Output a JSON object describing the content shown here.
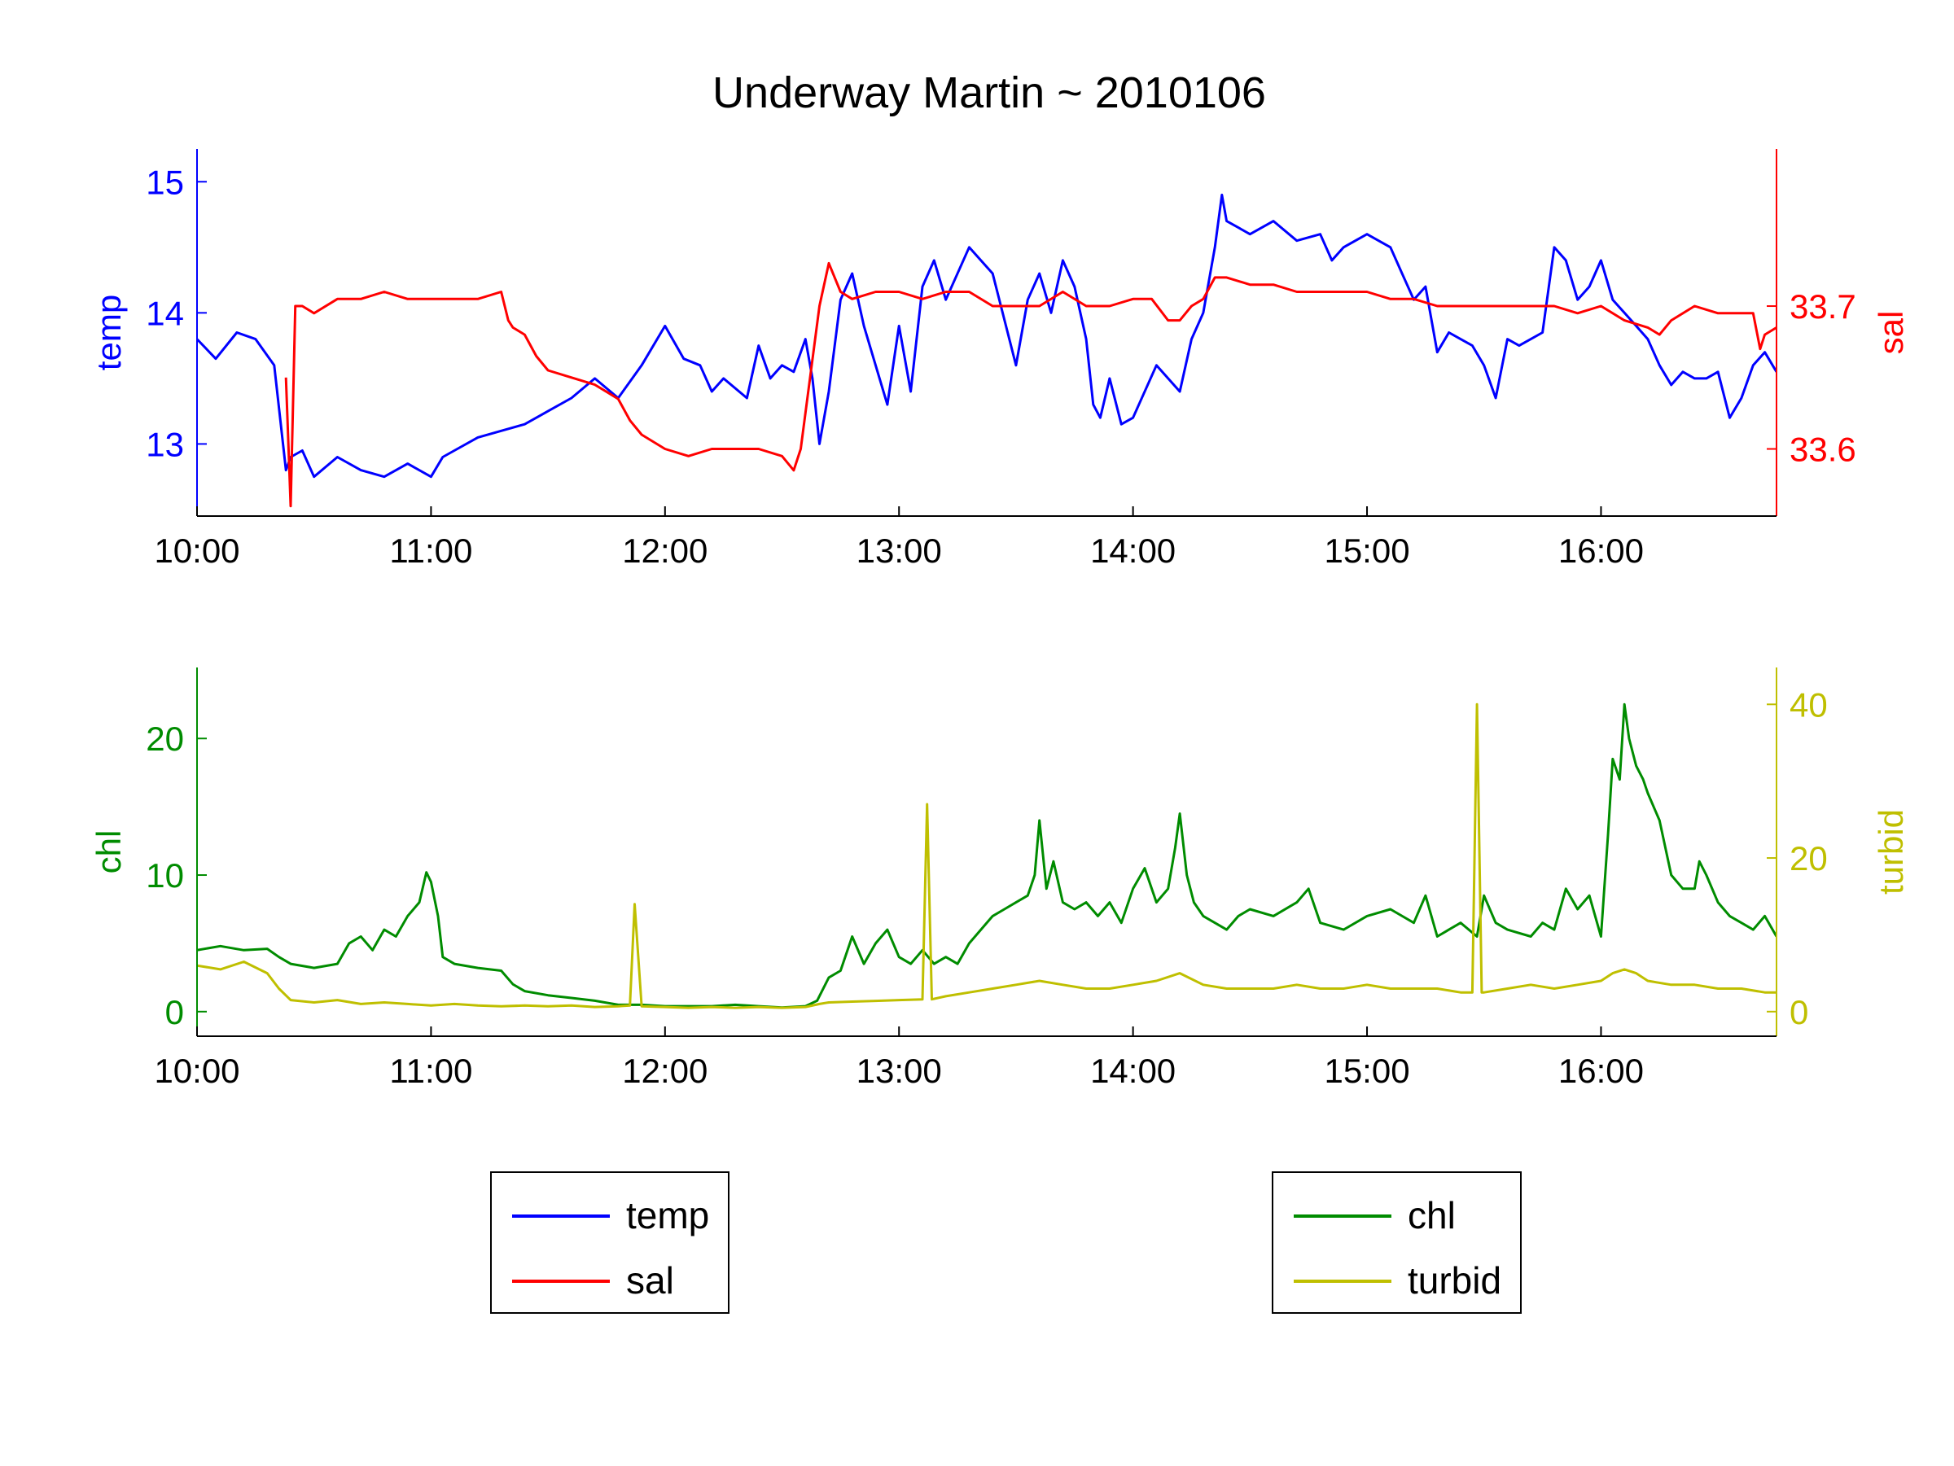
{
  "title": "Underway Martin ~ 2010106",
  "colors": {
    "temp": "#0000ff",
    "sal": "#ff0000",
    "chl": "#008c00",
    "turbid": "#bfbf00",
    "axis": "#000000"
  },
  "chart_data": [
    {
      "type": "line",
      "panel": "top",
      "x_unit": "time of day (hours)",
      "xlim": [
        10.0,
        16.75
      ],
      "x_ticks": [
        10,
        11,
        12,
        13,
        14,
        15,
        16
      ],
      "x_tick_labels": [
        "10:00",
        "11:00",
        "12:00",
        "13:00",
        "14:00",
        "15:00",
        "16:00"
      ],
      "left_axis": {
        "label": "temp",
        "ylim": [
          12.45,
          15.25
        ],
        "ticks": [
          13,
          14,
          15
        ],
        "tick_labels": [
          "13",
          "14",
          "15"
        ]
      },
      "right_axis": {
        "label": "sal",
        "ylim": [
          33.553,
          33.81
        ],
        "ticks": [
          33.6,
          33.7
        ],
        "tick_labels": [
          "33.6",
          "33.7"
        ]
      },
      "series": [
        {
          "name": "temp",
          "axis": "left",
          "color_key": "temp",
          "x": [
            10.0,
            10.08,
            10.17,
            10.25,
            10.33,
            10.38,
            10.4,
            10.45,
            10.5,
            10.6,
            10.7,
            10.8,
            10.9,
            11.0,
            11.05,
            11.1,
            11.2,
            11.3,
            11.4,
            11.5,
            11.6,
            11.7,
            11.8,
            11.9,
            12.0,
            12.08,
            12.15,
            12.2,
            12.25,
            12.35,
            12.4,
            12.45,
            12.5,
            12.55,
            12.6,
            12.63,
            12.66,
            12.7,
            12.75,
            12.8,
            12.85,
            12.9,
            12.95,
            13.0,
            13.05,
            13.1,
            13.15,
            13.2,
            13.3,
            13.4,
            13.5,
            13.55,
            13.6,
            13.65,
            13.7,
            13.75,
            13.8,
            13.83,
            13.86,
            13.9,
            13.95,
            14.0,
            14.1,
            14.2,
            14.25,
            14.3,
            14.35,
            14.38,
            14.4,
            14.45,
            14.5,
            14.6,
            14.7,
            14.8,
            14.85,
            14.9,
            15.0,
            15.1,
            15.15,
            15.2,
            15.25,
            15.3,
            15.35,
            15.4,
            15.45,
            15.5,
            15.55,
            15.6,
            15.65,
            15.7,
            15.75,
            15.8,
            15.85,
            15.9,
            15.95,
            16.0,
            16.05,
            16.1,
            16.15,
            16.2,
            16.25,
            16.3,
            16.35,
            16.4,
            16.45,
            16.5,
            16.55,
            16.6,
            16.65,
            16.7,
            16.75
          ],
          "values": [
            13.8,
            13.65,
            13.85,
            13.8,
            13.6,
            12.8,
            12.9,
            12.95,
            12.75,
            12.9,
            12.8,
            12.75,
            12.85,
            12.75,
            12.9,
            12.95,
            13.05,
            13.1,
            13.15,
            13.25,
            13.35,
            13.5,
            13.35,
            13.6,
            13.9,
            13.65,
            13.6,
            13.4,
            13.5,
            13.35,
            13.75,
            13.5,
            13.6,
            13.55,
            13.8,
            13.5,
            13.0,
            13.4,
            14.1,
            14.3,
            13.9,
            13.6,
            13.3,
            13.9,
            13.4,
            14.2,
            14.4,
            14.1,
            14.5,
            14.3,
            13.6,
            14.1,
            14.3,
            14.0,
            14.4,
            14.2,
            13.8,
            13.3,
            13.2,
            13.5,
            13.15,
            13.2,
            13.6,
            13.4,
            13.8,
            14.0,
            14.5,
            14.9,
            14.7,
            14.65,
            14.6,
            14.7,
            14.55,
            14.6,
            14.4,
            14.5,
            14.6,
            14.5,
            14.3,
            14.1,
            14.2,
            13.7,
            13.85,
            13.8,
            13.75,
            13.6,
            13.35,
            13.8,
            13.75,
            13.8,
            13.85,
            14.5,
            14.4,
            14.1,
            14.2,
            14.4,
            14.1,
            14.0,
            13.9,
            13.8,
            13.6,
            13.45,
            13.55,
            13.5,
            13.5,
            13.55,
            13.2,
            13.35,
            13.6,
            13.7,
            13.55
          ]
        },
        {
          "name": "sal",
          "axis": "right",
          "color_key": "sal",
          "x": [
            10.0,
            10.2,
            10.38,
            10.4,
            10.42,
            10.45,
            10.5,
            10.6,
            10.7,
            10.8,
            10.9,
            11.0,
            11.1,
            11.2,
            11.3,
            11.33,
            11.35,
            11.4,
            11.45,
            11.5,
            11.6,
            11.7,
            11.75,
            11.8,
            11.85,
            11.9,
            12.0,
            12.1,
            12.2,
            12.3,
            12.4,
            12.5,
            12.55,
            12.58,
            12.62,
            12.66,
            12.7,
            12.75,
            12.8,
            12.9,
            13.0,
            13.1,
            13.2,
            13.3,
            13.4,
            13.5,
            13.6,
            13.7,
            13.8,
            13.9,
            14.0,
            14.08,
            14.15,
            14.2,
            14.25,
            14.3,
            14.35,
            14.4,
            14.5,
            14.6,
            14.7,
            14.8,
            14.9,
            15.0,
            15.1,
            15.2,
            15.3,
            15.4,
            15.5,
            15.6,
            15.7,
            15.8,
            15.9,
            16.0,
            16.1,
            16.2,
            16.25,
            16.3,
            16.4,
            16.5,
            16.6,
            16.65,
            16.68,
            16.7,
            16.75
          ],
          "values": [
            null,
            null,
            33.65,
            33.56,
            33.7,
            33.7,
            33.695,
            33.705,
            33.705,
            33.71,
            33.705,
            33.705,
            33.705,
            33.705,
            33.71,
            33.69,
            33.685,
            33.68,
            33.665,
            33.655,
            33.65,
            33.645,
            33.64,
            33.635,
            33.62,
            33.61,
            33.6,
            33.595,
            33.6,
            33.6,
            33.6,
            33.595,
            33.585,
            33.6,
            33.65,
            33.7,
            33.73,
            33.71,
            33.705,
            33.71,
            33.71,
            33.705,
            33.71,
            33.71,
            33.7,
            33.7,
            33.7,
            33.71,
            33.7,
            33.7,
            33.705,
            33.705,
            33.69,
            33.69,
            33.7,
            33.705,
            33.72,
            33.72,
            33.715,
            33.715,
            33.71,
            33.71,
            33.71,
            33.71,
            33.705,
            33.705,
            33.7,
            33.7,
            33.7,
            33.7,
            33.7,
            33.7,
            33.695,
            33.7,
            33.69,
            33.685,
            33.68,
            33.69,
            33.7,
            33.695,
            33.695,
            33.695,
            33.67,
            33.68,
            33.685
          ]
        }
      ]
    },
    {
      "type": "line",
      "panel": "bottom",
      "x_unit": "time of day (hours)",
      "xlim": [
        10.0,
        16.75
      ],
      "x_ticks": [
        10,
        11,
        12,
        13,
        14,
        15,
        16
      ],
      "x_tick_labels": [
        "10:00",
        "11:00",
        "12:00",
        "13:00",
        "14:00",
        "15:00",
        "16:00"
      ],
      "left_axis": {
        "label": "chl",
        "ylim": [
          -1.8,
          25.2
        ],
        "ticks": [
          0,
          10,
          20
        ],
        "tick_labels": [
          "0",
          "10",
          "20"
        ]
      },
      "right_axis": {
        "label": "turbid",
        "ylim": [
          -3.2,
          44.8
        ],
        "ticks": [
          0,
          20,
          40
        ],
        "tick_labels": [
          "0",
          "20",
          "40"
        ]
      },
      "series": [
        {
          "name": "chl",
          "axis": "left",
          "color_key": "chl",
          "x": [
            10.0,
            10.1,
            10.2,
            10.3,
            10.35,
            10.4,
            10.5,
            10.6,
            10.65,
            10.7,
            10.75,
            10.8,
            10.85,
            10.9,
            10.95,
            10.98,
            11.0,
            11.03,
            11.05,
            11.1,
            11.2,
            11.3,
            11.35,
            11.4,
            11.5,
            11.6,
            11.7,
            11.8,
            11.9,
            12.0,
            12.1,
            12.2,
            12.3,
            12.4,
            12.5,
            12.6,
            12.65,
            12.7,
            12.75,
            12.8,
            12.85,
            12.9,
            12.95,
            13.0,
            13.05,
            13.1,
            13.15,
            13.2,
            13.25,
            13.3,
            13.35,
            13.4,
            13.45,
            13.5,
            13.55,
            13.58,
            13.6,
            13.63,
            13.66,
            13.7,
            13.75,
            13.8,
            13.85,
            13.9,
            13.95,
            14.0,
            14.05,
            14.1,
            14.15,
            14.18,
            14.2,
            14.23,
            14.26,
            14.3,
            14.35,
            14.4,
            14.45,
            14.5,
            14.6,
            14.7,
            14.75,
            14.8,
            14.9,
            15.0,
            15.1,
            15.2,
            15.25,
            15.3,
            15.35,
            15.4,
            15.47,
            15.5,
            15.55,
            15.6,
            15.7,
            15.75,
            15.8,
            15.85,
            15.9,
            15.95,
            16.0,
            16.03,
            16.05,
            16.08,
            16.1,
            16.12,
            16.15,
            16.18,
            16.2,
            16.25,
            16.3,
            16.35,
            16.4,
            16.42,
            16.45,
            16.5,
            16.55,
            16.6,
            16.65,
            16.7,
            16.75
          ],
          "values": [
            4.5,
            4.8,
            4.5,
            4.6,
            4.0,
            3.5,
            3.2,
            3.5,
            5.0,
            5.5,
            4.5,
            6.0,
            5.5,
            7.0,
            8.0,
            10.2,
            9.5,
            7.0,
            4.0,
            3.5,
            3.2,
            3.0,
            2.0,
            1.5,
            1.2,
            1.0,
            0.8,
            0.5,
            0.5,
            0.4,
            0.4,
            0.4,
            0.5,
            0.4,
            0.3,
            0.4,
            0.8,
            2.5,
            3.0,
            5.5,
            3.5,
            5.0,
            6.0,
            4.0,
            3.5,
            4.5,
            3.5,
            4.0,
            3.5,
            5.0,
            6.0,
            7.0,
            7.5,
            8.0,
            8.5,
            10.0,
            14.0,
            9.0,
            11.0,
            8.0,
            7.5,
            8.0,
            7.0,
            8.0,
            6.5,
            9.0,
            10.5,
            8.0,
            9.0,
            12.0,
            14.5,
            10.0,
            8.0,
            7.0,
            6.5,
            6.0,
            7.0,
            7.5,
            7.0,
            8.0,
            9.0,
            6.5,
            6.0,
            7.0,
            7.5,
            6.5,
            8.5,
            5.5,
            6.0,
            6.5,
            5.5,
            8.5,
            6.5,
            6.0,
            5.5,
            6.5,
            6.0,
            9.0,
            7.5,
            8.5,
            5.5,
            13.0,
            18.5,
            17.0,
            22.5,
            20.0,
            18.0,
            17.0,
            16.0,
            14.0,
            10.0,
            9.0,
            9.0,
            11.0,
            10.0,
            8.0,
            7.0,
            6.5,
            6.0,
            7.0,
            5.5
          ]
        },
        {
          "name": "turbid",
          "axis": "right",
          "color_key": "turbid",
          "x": [
            10.0,
            10.1,
            10.2,
            10.3,
            10.35,
            10.4,
            10.5,
            10.6,
            10.7,
            10.8,
            10.9,
            11.0,
            11.1,
            11.2,
            11.3,
            11.4,
            11.5,
            11.6,
            11.7,
            11.8,
            11.85,
            11.87,
            11.9,
            12.0,
            12.1,
            12.2,
            12.3,
            12.4,
            12.5,
            12.6,
            12.66,
            12.7,
            12.8,
            12.9,
            13.0,
            13.1,
            13.12,
            13.14,
            13.2,
            13.3,
            13.4,
            13.5,
            13.6,
            13.7,
            13.8,
            13.9,
            14.0,
            14.1,
            14.2,
            14.3,
            14.4,
            14.5,
            14.6,
            14.7,
            14.8,
            14.9,
            15.0,
            15.1,
            15.2,
            15.3,
            15.4,
            15.45,
            15.47,
            15.49,
            15.5,
            15.6,
            15.7,
            15.8,
            15.9,
            16.0,
            16.05,
            16.1,
            16.15,
            16.2,
            16.3,
            16.4,
            16.5,
            16.6,
            16.7,
            16.75
          ],
          "values": [
            6.0,
            5.5,
            6.5,
            5.0,
            3.0,
            1.5,
            1.2,
            1.5,
            1.0,
            1.2,
            1.0,
            0.8,
            1.0,
            0.8,
            0.7,
            0.8,
            0.7,
            0.8,
            0.6,
            0.7,
            0.8,
            14.0,
            0.7,
            0.6,
            0.5,
            0.6,
            0.5,
            0.6,
            0.5,
            0.6,
            1.0,
            1.2,
            1.3,
            1.4,
            1.5,
            1.6,
            27.0,
            1.6,
            2.0,
            2.5,
            3.0,
            3.5,
            4.0,
            3.5,
            3.0,
            3.0,
            3.5,
            4.0,
            5.0,
            3.5,
            3.0,
            3.0,
            3.0,
            3.5,
            3.0,
            3.0,
            3.5,
            3.0,
            3.0,
            3.0,
            2.5,
            2.5,
            40.0,
            2.5,
            2.5,
            3.0,
            3.5,
            3.0,
            3.5,
            4.0,
            5.0,
            5.5,
            5.0,
            4.0,
            3.5,
            3.5,
            3.0,
            3.0,
            2.5,
            2.5
          ]
        }
      ]
    }
  ],
  "legends": [
    {
      "entries": [
        {
          "label": "temp",
          "color_key": "temp"
        },
        {
          "label": "sal",
          "color_key": "sal"
        }
      ]
    },
    {
      "entries": [
        {
          "label": "chl",
          "color_key": "chl"
        },
        {
          "label": "turbid",
          "color_key": "turbid"
        }
      ]
    }
  ]
}
